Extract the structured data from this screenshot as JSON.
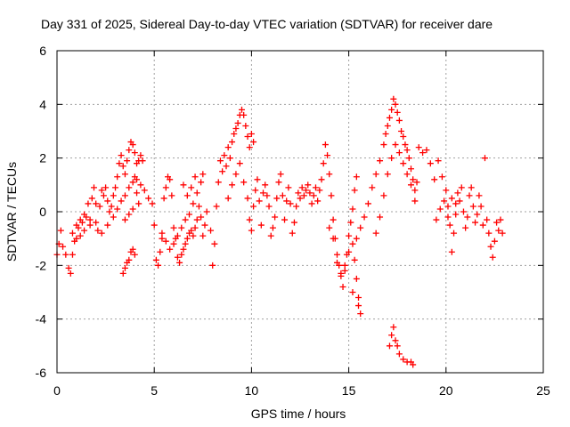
{
  "chart_data": {
    "type": "scatter",
    "title": "Day 331 of 2025, Sidereal Day-to-day VTEC variation (SDTVAR) for receiver dare",
    "xlabel": "GPS time / hours",
    "ylabel": "SDTVAR / TECUs",
    "xlim": [
      0,
      25
    ],
    "ylim": [
      -6,
      6
    ],
    "xticks": [
      0,
      5,
      10,
      15,
      20,
      25
    ],
    "yticks": [
      -6,
      -4,
      -2,
      0,
      2,
      4,
      6
    ],
    "xtick_labels": [
      "0",
      "5",
      "10",
      "15",
      "20",
      "25"
    ],
    "ytick_labels": [
      "-6",
      "-4",
      "-2",
      "0",
      "2",
      "4",
      "6"
    ],
    "grid": true,
    "marker": "+",
    "series_color": "#ff0000",
    "series": [
      {
        "name": "SDTVAR",
        "points": [
          [
            0.0,
            -1.6
          ],
          [
            0.1,
            -1.2
          ],
          [
            0.2,
            -0.7
          ],
          [
            0.3,
            -1.3
          ],
          [
            0.45,
            -1.6
          ],
          [
            0.6,
            -2.1
          ],
          [
            0.7,
            -2.3
          ],
          [
            0.8,
            -1.6
          ],
          [
            0.9,
            -1.1
          ],
          [
            1.0,
            -0.5
          ],
          [
            1.1,
            -0.6
          ],
          [
            1.2,
            -0.3
          ],
          [
            1.3,
            -0.4
          ],
          [
            1.4,
            -0.1
          ],
          [
            1.5,
            -0.2
          ],
          [
            1.6,
            0.3
          ],
          [
            1.7,
            -0.3
          ],
          [
            1.8,
            0.5
          ],
          [
            1.9,
            0.9
          ],
          [
            2.0,
            0.3
          ],
          [
            2.1,
            -0.7
          ],
          [
            2.2,
            0.2
          ],
          [
            2.3,
            0.8
          ],
          [
            2.4,
            0.6
          ],
          [
            2.5,
            0.9
          ],
          [
            2.6,
            0.4
          ],
          [
            2.7,
            0.0
          ],
          [
            2.8,
            0.2
          ],
          [
            2.9,
            0.6
          ],
          [
            3.0,
            0.9
          ],
          [
            3.1,
            1.3
          ],
          [
            3.2,
            1.8
          ],
          [
            3.3,
            2.1
          ],
          [
            3.4,
            1.7
          ],
          [
            3.5,
            1.4
          ],
          [
            3.6,
            1.9
          ],
          [
            3.7,
            2.3
          ],
          [
            3.8,
            2.6
          ],
          [
            3.9,
            2.5
          ],
          [
            4.0,
            2.2
          ],
          [
            4.1,
            1.8
          ],
          [
            4.2,
            1.9
          ],
          [
            4.3,
            2.1
          ],
          [
            4.4,
            1.9
          ],
          [
            4.0,
            1.3
          ],
          [
            4.1,
            0.7
          ],
          [
            4.2,
            0.3
          ],
          [
            3.9,
            0.1
          ],
          [
            3.7,
            -0.1
          ],
          [
            3.5,
            -0.3
          ],
          [
            3.4,
            -2.3
          ],
          [
            3.5,
            -2.1
          ],
          [
            3.6,
            -1.9
          ],
          [
            3.7,
            -1.8
          ],
          [
            3.8,
            -1.5
          ],
          [
            3.9,
            -1.4
          ],
          [
            4.0,
            -1.6
          ],
          [
            0.8,
            -0.8
          ],
          [
            1.0,
            -1.0
          ],
          [
            1.2,
            -0.9
          ],
          [
            1.4,
            -0.7
          ],
          [
            1.7,
            -0.5
          ],
          [
            2.0,
            -0.4
          ],
          [
            2.3,
            -0.8
          ],
          [
            2.6,
            -0.5
          ],
          [
            2.9,
            -0.2
          ],
          [
            3.1,
            0.1
          ],
          [
            3.3,
            0.4
          ],
          [
            3.5,
            0.6
          ],
          [
            3.7,
            0.9
          ],
          [
            3.9,
            1.1
          ],
          [
            4.1,
            1.2
          ],
          [
            4.3,
            1.0
          ],
          [
            4.5,
            0.8
          ],
          [
            4.7,
            0.5
          ],
          [
            4.9,
            0.3
          ],
          [
            5.0,
            -0.5
          ],
          [
            5.1,
            -1.8
          ],
          [
            5.2,
            -2.0
          ],
          [
            5.3,
            -1.5
          ],
          [
            5.4,
            -1.0
          ],
          [
            5.5,
            0.5
          ],
          [
            5.6,
            0.9
          ],
          [
            5.7,
            1.3
          ],
          [
            5.8,
            1.2
          ],
          [
            5.9,
            0.6
          ],
          [
            6.0,
            -0.6
          ],
          [
            6.1,
            -1.0
          ],
          [
            6.2,
            -1.7
          ],
          [
            6.3,
            -1.9
          ],
          [
            6.4,
            -1.6
          ],
          [
            6.5,
            -1.4
          ],
          [
            6.6,
            -1.2
          ],
          [
            6.7,
            -1.0
          ],
          [
            6.8,
            -0.8
          ],
          [
            6.9,
            -0.7
          ],
          [
            7.0,
            -0.9
          ],
          [
            7.1,
            -0.6
          ],
          [
            7.2,
            -0.3
          ],
          [
            7.3,
            0.2
          ],
          [
            7.4,
            -0.2
          ],
          [
            7.5,
            -0.9
          ],
          [
            7.6,
            -0.5
          ],
          [
            7.7,
            0.0
          ],
          [
            5.4,
            -0.8
          ],
          [
            5.6,
            -1.1
          ],
          [
            5.8,
            -1.4
          ],
          [
            6.0,
            -1.2
          ],
          [
            6.2,
            -0.9
          ],
          [
            6.4,
            -0.6
          ],
          [
            6.6,
            -0.3
          ],
          [
            6.8,
            -0.1
          ],
          [
            7.0,
            0.3
          ],
          [
            7.2,
            0.7
          ],
          [
            7.4,
            1.1
          ],
          [
            7.5,
            1.4
          ],
          [
            6.5,
            1.0
          ],
          [
            6.7,
            0.6
          ],
          [
            6.9,
            0.9
          ],
          [
            7.1,
            1.3
          ],
          [
            7.9,
            -0.7
          ],
          [
            8.0,
            -2.0
          ],
          [
            8.1,
            -1.2
          ],
          [
            8.2,
            0.2
          ],
          [
            8.3,
            1.1
          ],
          [
            8.4,
            1.9
          ],
          [
            8.5,
            1.5
          ],
          [
            8.6,
            2.1
          ],
          [
            8.7,
            1.7
          ],
          [
            8.8,
            2.4
          ],
          [
            8.9,
            2.0
          ],
          [
            9.0,
            2.6
          ],
          [
            9.1,
            2.9
          ],
          [
            9.2,
            3.1
          ],
          [
            9.3,
            3.3
          ],
          [
            9.4,
            3.6
          ],
          [
            9.5,
            3.8
          ],
          [
            9.6,
            3.6
          ],
          [
            9.7,
            3.2
          ],
          [
            9.8,
            2.8
          ],
          [
            9.9,
            2.4
          ],
          [
            10.0,
            2.9
          ],
          [
            10.1,
            2.6
          ],
          [
            8.8,
            0.5
          ],
          [
            9.0,
            1.0
          ],
          [
            9.2,
            1.4
          ],
          [
            9.4,
            1.8
          ],
          [
            9.6,
            1.1
          ],
          [
            9.8,
            0.5
          ],
          [
            9.9,
            -0.3
          ],
          [
            10.0,
            -0.7
          ],
          [
            10.1,
            0.2
          ],
          [
            10.2,
            0.8
          ],
          [
            10.3,
            1.2
          ],
          [
            10.4,
            0.4
          ],
          [
            10.5,
            -0.5
          ],
          [
            10.6,
            0.7
          ],
          [
            10.7,
            1.0
          ],
          [
            10.8,
            0.6
          ],
          [
            10.9,
            0.2
          ],
          [
            11.0,
            -0.9
          ],
          [
            11.1,
            -0.6
          ],
          [
            11.2,
            -0.2
          ],
          [
            11.3,
            0.5
          ],
          [
            11.4,
            1.1
          ],
          [
            11.5,
            1.4
          ],
          [
            11.6,
            0.6
          ],
          [
            11.7,
            -0.3
          ],
          [
            11.8,
            0.4
          ],
          [
            11.9,
            0.9
          ],
          [
            12.0,
            0.3
          ],
          [
            12.1,
            -0.8
          ],
          [
            12.2,
            -0.4
          ],
          [
            12.3,
            0.2
          ],
          [
            12.4,
            0.7
          ],
          [
            12.5,
            0.5
          ],
          [
            12.6,
            0.9
          ],
          [
            12.7,
            0.6
          ],
          [
            12.8,
            0.8
          ],
          [
            12.9,
            1.0
          ],
          [
            13.0,
            0.7
          ],
          [
            13.1,
            0.3
          ],
          [
            13.2,
            0.6
          ],
          [
            13.3,
            0.9
          ],
          [
            13.4,
            0.4
          ],
          [
            13.5,
            0.8
          ],
          [
            13.6,
            1.2
          ],
          [
            13.7,
            1.8
          ],
          [
            13.8,
            2.5
          ],
          [
            13.9,
            2.1
          ],
          [
            14.0,
            1.4
          ],
          [
            14.1,
            0.6
          ],
          [
            14.2,
            -0.3
          ],
          [
            14.3,
            -1.0
          ],
          [
            14.4,
            -1.6
          ],
          [
            14.5,
            -2.0
          ],
          [
            14.6,
            -2.4
          ],
          [
            14.7,
            -2.8
          ],
          [
            14.8,
            -2.2
          ],
          [
            14.9,
            -1.6
          ],
          [
            15.0,
            -0.9
          ],
          [
            15.1,
            -0.4
          ],
          [
            15.2,
            0.1
          ],
          [
            15.3,
            0.8
          ],
          [
            15.4,
            1.3
          ],
          [
            15.3,
            -1.8
          ],
          [
            15.4,
            -2.5
          ],
          [
            15.5,
            -3.2
          ],
          [
            15.6,
            -3.8
          ],
          [
            15.5,
            -3.5
          ],
          [
            15.2,
            -3.0
          ],
          [
            14.0,
            -0.6
          ],
          [
            14.2,
            -1.0
          ],
          [
            14.4,
            -1.9
          ],
          [
            14.6,
            -2.3
          ],
          [
            14.8,
            -2.0
          ],
          [
            15.0,
            -1.5
          ],
          [
            15.2,
            -1.2
          ],
          [
            15.4,
            -1.0
          ],
          [
            15.6,
            -0.6
          ],
          [
            15.8,
            -0.2
          ],
          [
            16.0,
            0.3
          ],
          [
            16.2,
            0.9
          ],
          [
            16.4,
            1.4
          ],
          [
            16.6,
            1.9
          ],
          [
            16.8,
            2.5
          ],
          [
            16.9,
            2.9
          ],
          [
            17.0,
            3.2
          ],
          [
            17.1,
            3.5
          ],
          [
            17.2,
            3.8
          ],
          [
            17.3,
            4.2
          ],
          [
            17.4,
            4.0
          ],
          [
            17.5,
            3.7
          ],
          [
            17.6,
            3.4
          ],
          [
            17.7,
            3.0
          ],
          [
            17.8,
            2.8
          ],
          [
            17.9,
            2.5
          ],
          [
            18.0,
            2.3
          ],
          [
            18.1,
            2.0
          ],
          [
            18.2,
            1.6
          ],
          [
            18.3,
            1.2
          ],
          [
            18.4,
            0.8
          ],
          [
            18.5,
            1.1
          ],
          [
            16.4,
            -0.8
          ],
          [
            16.6,
            -0.2
          ],
          [
            16.8,
            0.6
          ],
          [
            17.0,
            1.4
          ],
          [
            17.2,
            2.0
          ],
          [
            17.4,
            2.5
          ],
          [
            17.6,
            2.2
          ],
          [
            17.8,
            1.8
          ],
          [
            18.0,
            1.4
          ],
          [
            18.2,
            1.0
          ],
          [
            18.4,
            0.4
          ],
          [
            17.1,
            -5.0
          ],
          [
            17.2,
            -4.6
          ],
          [
            17.3,
            -4.3
          ],
          [
            17.4,
            -4.8
          ],
          [
            17.5,
            -5.0
          ],
          [
            17.6,
            -5.3
          ],
          [
            17.8,
            -5.5
          ],
          [
            18.0,
            -5.6
          ],
          [
            18.2,
            -5.6
          ],
          [
            18.3,
            -5.7
          ],
          [
            18.6,
            2.4
          ],
          [
            18.8,
            2.2
          ],
          [
            19.0,
            2.3
          ],
          [
            19.2,
            1.8
          ],
          [
            19.4,
            1.2
          ],
          [
            19.6,
            1.9
          ],
          [
            19.8,
            1.3
          ],
          [
            20.0,
            0.8
          ],
          [
            20.1,
            0.2
          ],
          [
            20.2,
            -0.5
          ],
          [
            20.3,
            -1.5
          ],
          [
            20.4,
            -0.8
          ],
          [
            20.5,
            0.3
          ],
          [
            20.6,
            0.7
          ],
          [
            20.7,
            0.4
          ],
          [
            20.8,
            0.9
          ],
          [
            20.9,
            0.0
          ],
          [
            21.0,
            -0.6
          ],
          [
            21.1,
            -0.2
          ],
          [
            21.2,
            0.6
          ],
          [
            21.3,
            0.9
          ],
          [
            21.4,
            0.2
          ],
          [
            21.5,
            -0.4
          ],
          [
            21.6,
            -0.1
          ],
          [
            21.7,
            0.6
          ],
          [
            21.8,
            0.2
          ],
          [
            21.9,
            -0.5
          ],
          [
            22.0,
            2.0
          ],
          [
            22.1,
            -0.3
          ],
          [
            22.2,
            -0.8
          ],
          [
            22.3,
            -1.3
          ],
          [
            22.4,
            -1.7
          ],
          [
            22.5,
            -1.1
          ],
          [
            22.6,
            -0.4
          ],
          [
            22.7,
            -0.7
          ],
          [
            22.8,
            -0.3
          ],
          [
            22.9,
            -0.8
          ],
          [
            19.5,
            -0.3
          ],
          [
            19.7,
            0.1
          ],
          [
            19.9,
            0.4
          ],
          [
            20.1,
            -0.2
          ],
          [
            20.3,
            0.5
          ],
          [
            20.5,
            -0.1
          ]
        ]
      }
    ]
  }
}
